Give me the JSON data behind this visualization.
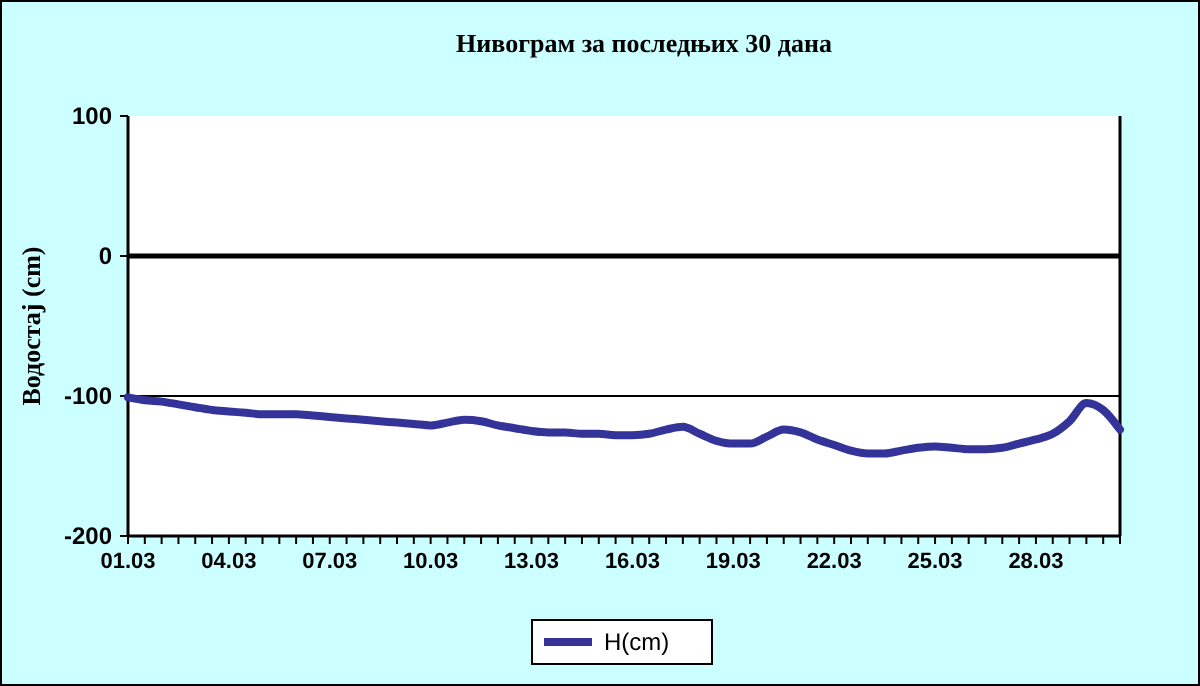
{
  "chart_data": {
    "type": "line",
    "title": "Нивограм за последњих 30 дана",
    "ylabel": "Водостај (cm)",
    "categories": [
      "01.03",
      null,
      null,
      null,
      null,
      null,
      "04.03",
      null,
      null,
      null,
      null,
      null,
      "07.03",
      null,
      null,
      null,
      null,
      null,
      "10.03",
      null,
      null,
      null,
      null,
      null,
      "13.03",
      null,
      null,
      null,
      null,
      null,
      "16.03",
      null,
      null,
      null,
      null,
      null,
      "19.03",
      null,
      null,
      null,
      null,
      null,
      "22.03",
      null,
      null,
      null,
      null,
      null,
      "25.03",
      null,
      null,
      null,
      null,
      null,
      "28.03",
      null,
      null,
      null,
      null,
      null
    ],
    "series": [
      {
        "name": "H(cm)",
        "color": "#333399",
        "values": [
          -101,
          -103,
          -104,
          -106,
          -108,
          -110,
          -111,
          -112,
          -113,
          -113,
          -113,
          -114,
          -115,
          -116,
          -117,
          -118,
          -119,
          -120,
          -121,
          -119,
          -117,
          -118,
          -121,
          -123,
          -125,
          -126,
          -126,
          -127,
          -127,
          -128,
          -128,
          -127,
          -124,
          -122,
          -127,
          -132,
          -134,
          -134,
          -129,
          -124,
          -126,
          -131,
          -135,
          -139,
          -141,
          -141,
          -139,
          -137,
          -136,
          -137,
          -138,
          -138,
          -137,
          -134,
          -131,
          -127,
          -118,
          -105,
          -110,
          -124
        ]
      }
    ],
    "ylim": [
      -200,
      100
    ],
    "yticks": [
      -200,
      -100,
      0,
      100
    ],
    "ref_lines": [
      {
        "axis": "y",
        "value": 0,
        "color": "#000000"
      },
      {
        "axis": "y",
        "value": -100,
        "color": "#000000"
      }
    ],
    "legend": "bottom",
    "marker": "none",
    "line_style": "solid"
  }
}
